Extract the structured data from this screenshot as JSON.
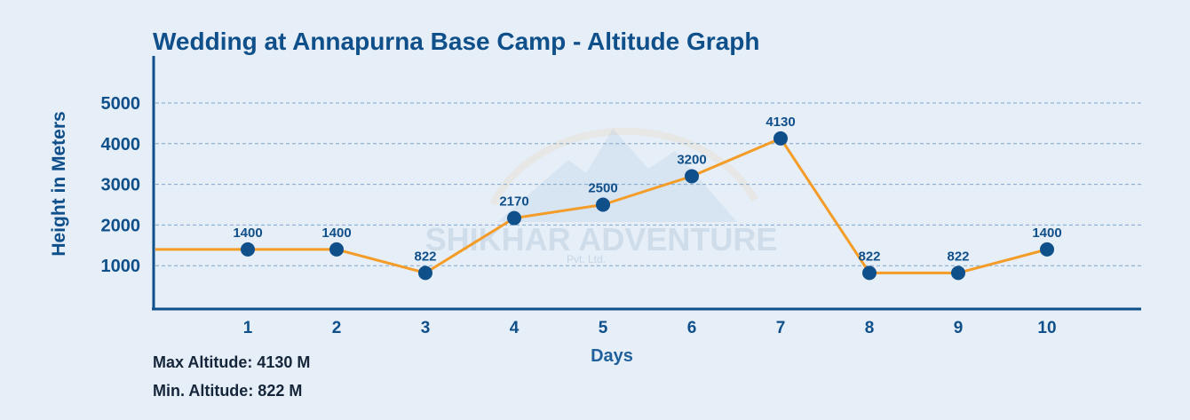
{
  "chart_data": {
    "type": "line",
    "title": "Wedding at Annapurna Base Camp - Altitude Graph",
    "xlabel": "Days",
    "ylabel": "Height in Meters",
    "categories": [
      "1",
      "2",
      "3",
      "4",
      "5",
      "6",
      "7",
      "8",
      "9",
      "10"
    ],
    "values": [
      1400,
      1400,
      822,
      2170,
      2500,
      3200,
      4130,
      822,
      822,
      1400
    ],
    "data_labels": [
      "1400",
      "1400",
      "822",
      "2170",
      "2500",
      "3200",
      "4130",
      "822",
      "822",
      "1400"
    ],
    "start_value": 1400,
    "yticks": [
      1000,
      2000,
      3000,
      4000,
      5000
    ],
    "ytick_labels": [
      "1000",
      "2000",
      "3000",
      "4000",
      "5000"
    ],
    "ylim": [
      0,
      5500
    ],
    "grid": "horizontal dashed",
    "line_color": "#f39c28",
    "marker_color": "#0f4f8a",
    "axis_color": "#0f4f8a"
  },
  "notes": {
    "max_altitude": "Max Altitude: 4130 M",
    "min_altitude": "Min. Altitude: 822 M"
  },
  "watermark": {
    "text": "SHIKHAR ADVENTURE",
    "subtext": "Pvt. Ltd."
  }
}
